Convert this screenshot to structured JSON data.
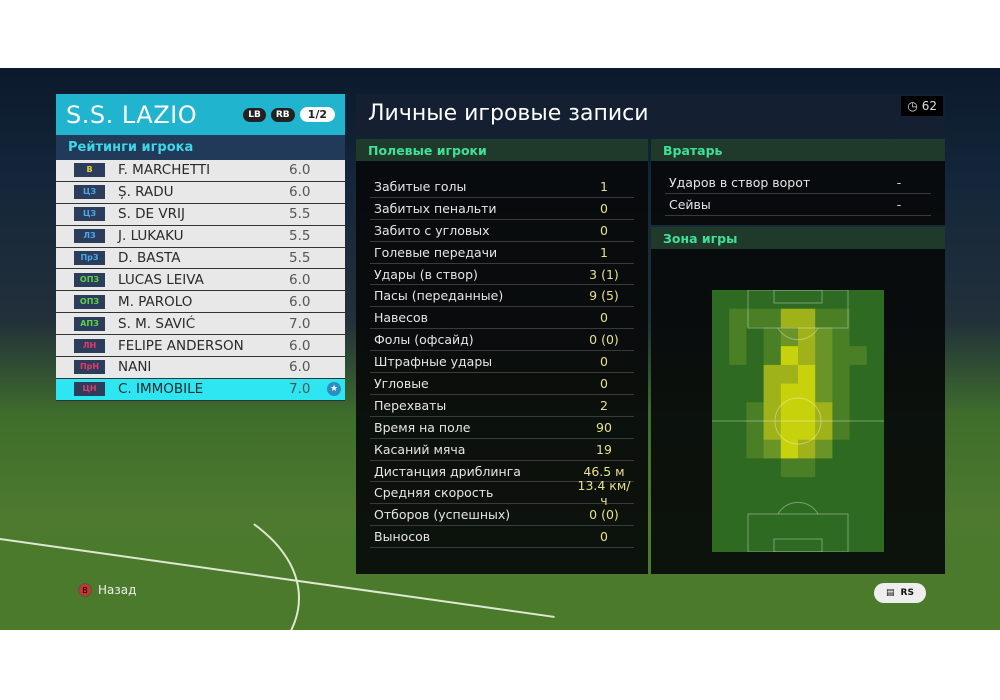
{
  "team": {
    "name": "S.S. LAZIO",
    "lb": "LB",
    "rb": "RB",
    "page": "1/2"
  },
  "ratings_title": "Рейтинги игрока",
  "players": [
    {
      "pos": "В",
      "pos_color": "#e8d23a",
      "name": "F. MARCHETTI",
      "rating": "6.0"
    },
    {
      "pos": "ЦЗ",
      "pos_color": "#4aa8e8",
      "name": "Ș. RADU",
      "rating": "6.0"
    },
    {
      "pos": "ЦЗ",
      "pos_color": "#4aa8e8",
      "name": "S. DE VRIJ",
      "rating": "5.5"
    },
    {
      "pos": "ЛЗ",
      "pos_color": "#4aa8e8",
      "name": "J. LUKAKU",
      "rating": "5.5"
    },
    {
      "pos": "ПрЗ",
      "pos_color": "#4aa8e8",
      "name": "D. BASTA",
      "rating": "5.5"
    },
    {
      "pos": "ОПЗ",
      "pos_color": "#5fd04a",
      "name": "LUCAS LEIVA",
      "rating": "6.0"
    },
    {
      "pos": "ОПЗ",
      "pos_color": "#5fd04a",
      "name": "M. PAROLO",
      "rating": "6.0"
    },
    {
      "pos": "АПЗ",
      "pos_color": "#5fd04a",
      "name": "S. M. SAVIĆ",
      "rating": "7.0"
    },
    {
      "pos": "ЛН",
      "pos_color": "#e83a6a",
      "name": "FELIPE ANDERSON",
      "rating": "6.0"
    },
    {
      "pos": "ПрН",
      "pos_color": "#e83a6a",
      "name": "NANI",
      "rating": "6.0"
    },
    {
      "pos": "ЦН",
      "pos_color": "#e83a6a",
      "name": "C. IMMOBILE",
      "rating": "7.0",
      "selected": true,
      "star": true
    }
  ],
  "title": "Личные игровые записи",
  "timer": "62",
  "field_title": "Полевые игроки",
  "field_stats": [
    {
      "label": "Забитые голы",
      "value": "1"
    },
    {
      "label": "Забитых пенальти",
      "value": "0"
    },
    {
      "label": "Забито с угловых",
      "value": "0"
    },
    {
      "label": "Голевые передачи",
      "value": "1"
    },
    {
      "label": "Удары (в створ)",
      "value": "3 (1)"
    },
    {
      "label": "Пасы (переданные)",
      "value": "9 (5)"
    },
    {
      "label": "Навесов",
      "value": "0"
    },
    {
      "label": "Фолы (офсайд)",
      "value": "0 (0)"
    },
    {
      "label": "Штрафные удары",
      "value": "0"
    },
    {
      "label": "Угловые",
      "value": "0"
    },
    {
      "label": "Перехваты",
      "value": "2"
    },
    {
      "label": "Время на поле",
      "value": "90"
    },
    {
      "label": "Касаний мяча",
      "value": "19"
    },
    {
      "label": "Дистанция дриблинга",
      "value": "46.5 м"
    },
    {
      "label": "Средняя скорость",
      "value": "13.4 км/ч"
    },
    {
      "label": "Отборов (успешных)",
      "value": "0 (0)"
    },
    {
      "label": "Выносов",
      "value": "0"
    }
  ],
  "gk_title": "Вратарь",
  "gk_stats": [
    {
      "label": "Ударов в створ ворот",
      "value": "-"
    },
    {
      "label": "Сейвы",
      "value": "-"
    }
  ],
  "zone_title": "Зона игры",
  "heatmap": [
    [
      0,
      0,
      0,
      0,
      0,
      0,
      0,
      0,
      0,
      0
    ],
    [
      0,
      1,
      1,
      1,
      3,
      3,
      1,
      1,
      0,
      0
    ],
    [
      0,
      1,
      0,
      1,
      2,
      3,
      2,
      1,
      0,
      0
    ],
    [
      0,
      1,
      0,
      1,
      4,
      3,
      2,
      1,
      1,
      0
    ],
    [
      0,
      0,
      0,
      3,
      3,
      4,
      2,
      1,
      0,
      0
    ],
    [
      0,
      0,
      0,
      3,
      4,
      4,
      2,
      1,
      0,
      0
    ],
    [
      0,
      0,
      1,
      3,
      4,
      4,
      3,
      1,
      0,
      0
    ],
    [
      0,
      0,
      1,
      3,
      4,
      4,
      3,
      1,
      0,
      0
    ],
    [
      0,
      0,
      1,
      2,
      4,
      3,
      2,
      0,
      0,
      0
    ],
    [
      0,
      0,
      0,
      0,
      1,
      1,
      0,
      0,
      0,
      0
    ],
    [
      0,
      0,
      0,
      0,
      0,
      0,
      0,
      0,
      0,
      0
    ],
    [
      0,
      0,
      0,
      0,
      0,
      0,
      0,
      0,
      0,
      0
    ],
    [
      0,
      0,
      0,
      0,
      0,
      0,
      0,
      0,
      0,
      0
    ],
    [
      0,
      0,
      0,
      0,
      0,
      0,
      0,
      0,
      0,
      0
    ]
  ],
  "footer": {
    "back_key": "B",
    "back_label": "Назад",
    "rs_label": "RS"
  }
}
